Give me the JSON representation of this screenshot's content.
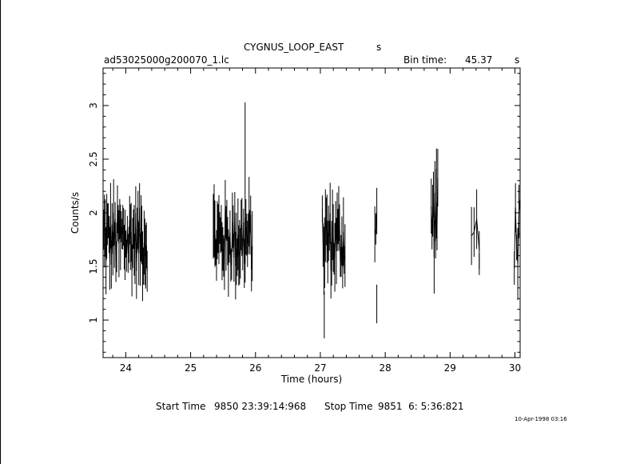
{
  "chart_data": {
    "type": "line",
    "title": "CYGNUS_LOOP_EAST",
    "title_suffix": "s",
    "file_label": "ad53025000g200070_1.lc",
    "bin_time_label": "Bin time:",
    "bin_time_value": "45.37",
    "bin_time_unit": "s",
    "xlabel": "Time (hours)",
    "ylabel": "Counts/s",
    "xlim": [
      23.65,
      30.08
    ],
    "ylim": [
      0.65,
      3.35
    ],
    "x_ticks": [
      24,
      25,
      26,
      27,
      28,
      29,
      30
    ],
    "x_tick_labels": [
      "24",
      "25",
      "26",
      "27",
      "28",
      "29",
      "30"
    ],
    "y_ticks": [
      1,
      1.5,
      2,
      2.5,
      3
    ],
    "y_tick_labels": [
      "1",
      "1.5",
      "2",
      "2.5",
      "3"
    ],
    "grid": false,
    "segments": [
      {
        "x_start": 23.66,
        "x_end": 24.33,
        "mean": 1.75,
        "spread": 0.3,
        "point_count": 58
      },
      {
        "x_start": 25.35,
        "x_end": 25.95,
        "mean": 1.75,
        "spread": 0.3,
        "point_count": 50
      },
      {
        "x_start": 27.03,
        "x_end": 27.38,
        "mean": 1.75,
        "spread": 0.3,
        "point_count": 30
      },
      {
        "x_start": 27.84,
        "x_end": 27.87,
        "mean": 1.8,
        "spread": 0.35,
        "point_count": 3
      },
      {
        "x_start": 28.71,
        "x_end": 28.81,
        "mean": 1.95,
        "spread": 0.4,
        "point_count": 10
      },
      {
        "x_start": 29.33,
        "x_end": 29.45,
        "mean": 1.8,
        "spread": 0.35,
        "point_count": 4
      },
      {
        "x_start": 29.99,
        "x_end": 30.08,
        "mean": 1.8,
        "spread": 0.35,
        "point_count": 6
      }
    ],
    "peak_points": [
      {
        "x": 25.84,
        "y": 2.48,
        "err": 0.55
      },
      {
        "x": 25.84,
        "y": 1.65,
        "err": 0.3
      },
      {
        "x": 27.06,
        "y": 1.05,
        "err": 0.22
      },
      {
        "x": 27.87,
        "y": 1.15,
        "err": 0.18
      },
      {
        "x": 28.79,
        "y": 2.25,
        "err": 0.35
      },
      {
        "x": 29.45,
        "y": 1.52,
        "err": 0.1
      }
    ]
  },
  "footer": {
    "start_label": "Start Time",
    "start_value": "9850 23:39:14:968",
    "stop_label": "Stop Time",
    "stop_value": "9851  6: 5:36:821",
    "stamp": "10-Apr-1998 03:16"
  }
}
